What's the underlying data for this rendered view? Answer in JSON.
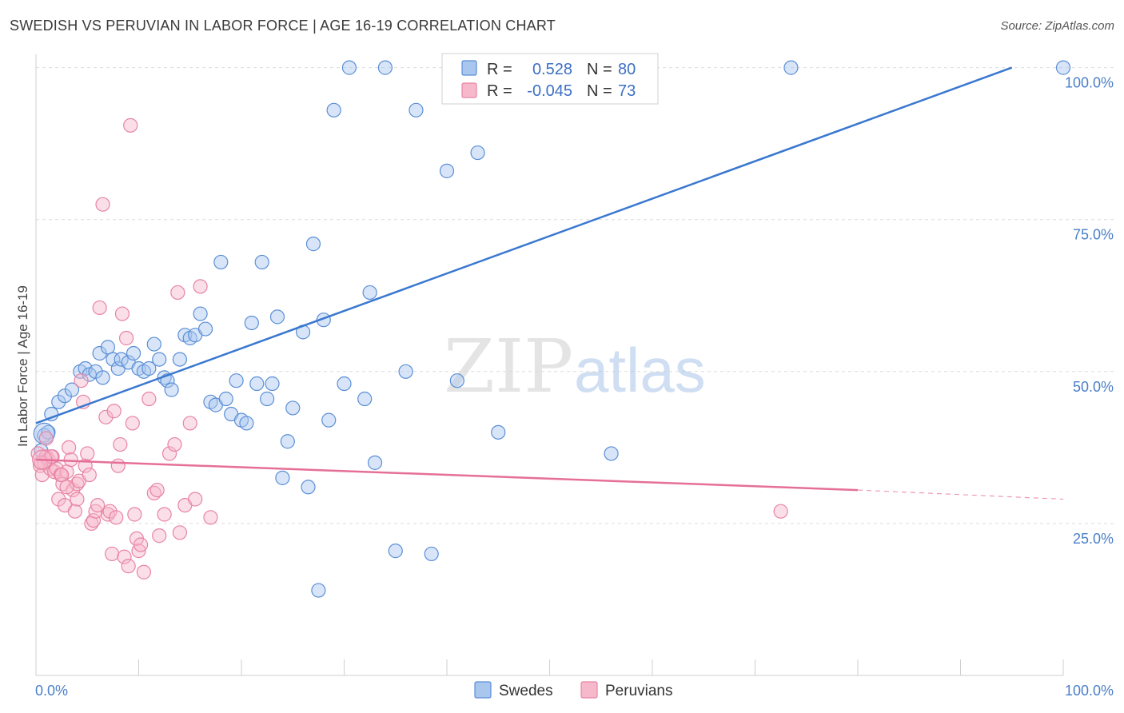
{
  "title": "SWEDISH VS PERUVIAN IN LABOR FORCE | AGE 16-19 CORRELATION CHART",
  "source": "Source: ZipAtlas.com",
  "colors": {
    "swedes_fill": "#a9c6ef",
    "swedes_stroke": "#5b8fd6",
    "swedes_line": "#3a78d0",
    "peruvians_fill": "#f6b9cc",
    "peruvians_stroke": "#e884a4",
    "peruvians_line": "#e56f98",
    "axis_text": "#4a7fc9",
    "grid": "#dcdcdc"
  },
  "chart_data": {
    "type": "scatter",
    "title": "SWEDISH VS PERUVIAN IN LABOR FORCE | AGE 16-19 CORRELATION CHART",
    "xlabel": "",
    "ylabel": "In Labor Force | Age 16-19",
    "xlim": [
      0,
      100
    ],
    "ylim": [
      0,
      101
    ],
    "x_tick_labels": [
      "0.0%",
      "100.0%"
    ],
    "y_ticks": [
      25,
      50,
      75,
      100
    ],
    "y_tick_labels": [
      "25.0%",
      "50.0%",
      "75.0%",
      "100.0%"
    ],
    "grid": true,
    "legend_position": "bottom",
    "watermark": "ZIPatlas",
    "stats": [
      {
        "r_label": "R =",
        "r_value": "0.528",
        "n_label": "N =",
        "n_value": "80"
      },
      {
        "r_label": "R =",
        "r_value": "-0.045",
        "n_label": "N =",
        "n_value": "73"
      }
    ],
    "series": [
      {
        "name": "Swedes",
        "trend": {
          "x": [
            0,
            95
          ],
          "y": [
            41.5,
            100
          ]
        },
        "points": [
          [
            0.5,
            37
          ],
          [
            0.8,
            39.5
          ],
          [
            1.2,
            40
          ],
          [
            1.5,
            43
          ],
          [
            2.2,
            45
          ],
          [
            2.8,
            46
          ],
          [
            3.5,
            47
          ],
          [
            4.3,
            50
          ],
          [
            4.8,
            50.5
          ],
          [
            5.2,
            49.5
          ],
          [
            5.8,
            50
          ],
          [
            6.2,
            53
          ],
          [
            6.5,
            49
          ],
          [
            7.0,
            54
          ],
          [
            7.5,
            52
          ],
          [
            8.0,
            50.5
          ],
          [
            8.3,
            52
          ],
          [
            9.0,
            51.5
          ],
          [
            9.5,
            53
          ],
          [
            10.0,
            50.5
          ],
          [
            10.5,
            50
          ],
          [
            11.0,
            50.5
          ],
          [
            11.5,
            54.5
          ],
          [
            12.0,
            52
          ],
          [
            12.5,
            49
          ],
          [
            12.8,
            48.5
          ],
          [
            13.2,
            47
          ],
          [
            14.0,
            52
          ],
          [
            14.5,
            56
          ],
          [
            15.0,
            55.5
          ],
          [
            15.5,
            56
          ],
          [
            16.0,
            59.5
          ],
          [
            16.5,
            57
          ],
          [
            17.0,
            45
          ],
          [
            17.5,
            44.5
          ],
          [
            18.0,
            68
          ],
          [
            18.5,
            45.5
          ],
          [
            19.0,
            43
          ],
          [
            19.5,
            48.5
          ],
          [
            20.0,
            42
          ],
          [
            20.5,
            41.5
          ],
          [
            21.0,
            58
          ],
          [
            21.5,
            48
          ],
          [
            22.0,
            68
          ],
          [
            22.5,
            45.5
          ],
          [
            23.0,
            48
          ],
          [
            23.5,
            59
          ],
          [
            24.0,
            32.5
          ],
          [
            24.5,
            38.5
          ],
          [
            25.0,
            44
          ],
          [
            26.0,
            56.5
          ],
          [
            26.5,
            31
          ],
          [
            27.0,
            71
          ],
          [
            27.5,
            14
          ],
          [
            28.0,
            58.5
          ],
          [
            28.5,
            42
          ],
          [
            29.0,
            93
          ],
          [
            30.0,
            48
          ],
          [
            30.5,
            100
          ],
          [
            32.0,
            45.5
          ],
          [
            32.5,
            63
          ],
          [
            33.0,
            35
          ],
          [
            34.0,
            100
          ],
          [
            35.0,
            20.5
          ],
          [
            36.0,
            50
          ],
          [
            37.0,
            93
          ],
          [
            38.5,
            20
          ],
          [
            40.0,
            83
          ],
          [
            41.0,
            48.5
          ],
          [
            42.0,
            100
          ],
          [
            43.0,
            86
          ],
          [
            45.0,
            40
          ],
          [
            55.5,
            100
          ],
          [
            56.0,
            36.5
          ],
          [
            57.0,
            100
          ],
          [
            73.5,
            100
          ],
          [
            100,
            100
          ]
        ]
      },
      {
        "name": "Peruvians",
        "trend": {
          "x": [
            0,
            80
          ],
          "y": [
            35.5,
            30.5
          ]
        },
        "trend_dashed": {
          "x": [
            80,
            100
          ],
          "y": [
            30.5,
            29
          ]
        },
        "points": [
          [
            0.2,
            36.5
          ],
          [
            0.4,
            34.5
          ],
          [
            0.6,
            33
          ],
          [
            0.8,
            35
          ],
          [
            1.0,
            36
          ],
          [
            1.2,
            35.5
          ],
          [
            1.4,
            34
          ],
          [
            1.6,
            36
          ],
          [
            1.8,
            33.5
          ],
          [
            2.0,
            34
          ],
          [
            2.2,
            29
          ],
          [
            2.4,
            33
          ],
          [
            2.6,
            31.5
          ],
          [
            2.8,
            28
          ],
          [
            3.0,
            33.5
          ],
          [
            3.2,
            37.5
          ],
          [
            3.4,
            35.5
          ],
          [
            3.6,
            30.5
          ],
          [
            3.8,
            27
          ],
          [
            4.0,
            31.5
          ],
          [
            4.2,
            32
          ],
          [
            4.4,
            48.5
          ],
          [
            4.6,
            45
          ],
          [
            4.8,
            34.5
          ],
          [
            5.0,
            36.5
          ],
          [
            5.2,
            33
          ],
          [
            5.4,
            25
          ],
          [
            5.6,
            25.5
          ],
          [
            5.8,
            27
          ],
          [
            6.0,
            28
          ],
          [
            6.2,
            60.5
          ],
          [
            6.5,
            77.5
          ],
          [
            6.8,
            42.5
          ],
          [
            7.0,
            26.5
          ],
          [
            7.2,
            27
          ],
          [
            7.4,
            20
          ],
          [
            7.6,
            43.5
          ],
          [
            7.8,
            26
          ],
          [
            8.0,
            34.5
          ],
          [
            8.2,
            38
          ],
          [
            8.4,
            59.5
          ],
          [
            8.6,
            19.5
          ],
          [
            8.8,
            55.5
          ],
          [
            9.0,
            18
          ],
          [
            9.2,
            90.5
          ],
          [
            9.4,
            41.5
          ],
          [
            9.6,
            26.5
          ],
          [
            9.8,
            22.5
          ],
          [
            10.0,
            20.5
          ],
          [
            10.2,
            21.5
          ],
          [
            10.5,
            17
          ],
          [
            11.0,
            45.5
          ],
          [
            11.5,
            30
          ],
          [
            11.8,
            30.5
          ],
          [
            12.0,
            23
          ],
          [
            12.5,
            26.5
          ],
          [
            13.0,
            36.5
          ],
          [
            13.5,
            38
          ],
          [
            13.8,
            63
          ],
          [
            14.0,
            23.5
          ],
          [
            14.5,
            28
          ],
          [
            15.0,
            41.5
          ],
          [
            15.5,
            29
          ],
          [
            16.0,
            64
          ],
          [
            17.0,
            26
          ],
          [
            1.0,
            39
          ],
          [
            1.5,
            36
          ],
          [
            2.5,
            33
          ],
          [
            0.5,
            35
          ],
          [
            3.0,
            31
          ],
          [
            4.0,
            29
          ],
          [
            72.5,
            27
          ]
        ]
      }
    ]
  },
  "legend": {
    "items": [
      {
        "label": "Swedes"
      },
      {
        "label": "Peruvians"
      }
    ]
  }
}
